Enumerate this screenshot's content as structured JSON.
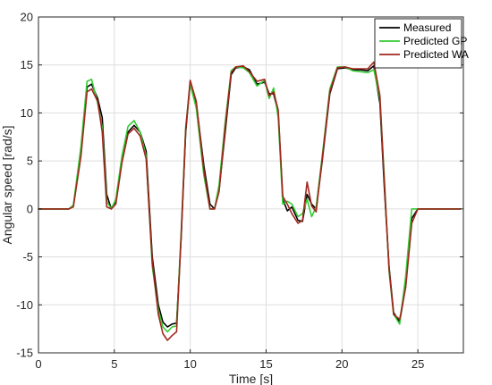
{
  "chart_data": {
    "type": "line",
    "title": "",
    "xlabel": "Time [s]",
    "ylabel": "Angular speed [rad/s]",
    "xlim": [
      0,
      28
    ],
    "ylim": [
      -15,
      20
    ],
    "xticks": [
      0,
      5,
      10,
      15,
      20,
      25
    ],
    "yticks": [
      -15,
      -10,
      -5,
      0,
      5,
      10,
      15,
      20
    ],
    "grid": true,
    "legend_position": "top-right",
    "series": [
      {
        "name": "Measured",
        "color": "#000000",
        "points": [
          [
            0,
            0
          ],
          [
            2,
            0
          ],
          [
            2.3,
            0.3
          ],
          [
            2.8,
            6
          ],
          [
            3.2,
            12.7
          ],
          [
            3.5,
            13
          ],
          [
            3.9,
            11.5
          ],
          [
            4.2,
            9.5
          ],
          [
            4.5,
            1.5
          ],
          [
            4.8,
            0
          ],
          [
            5.1,
            0.8
          ],
          [
            5.5,
            5
          ],
          [
            5.9,
            8
          ],
          [
            6.3,
            8.7
          ],
          [
            6.7,
            8
          ],
          [
            7.1,
            6
          ],
          [
            7.5,
            -5
          ],
          [
            7.9,
            -10
          ],
          [
            8.2,
            -11.8
          ],
          [
            8.5,
            -12.3
          ],
          [
            8.8,
            -12
          ],
          [
            9.1,
            -11.9
          ],
          [
            9.4,
            -3
          ],
          [
            9.7,
            8
          ],
          [
            10,
            13.2
          ],
          [
            10.4,
            11
          ],
          [
            10.9,
            4.5
          ],
          [
            11.3,
            0.5
          ],
          [
            11.6,
            0
          ],
          [
            11.9,
            2
          ],
          [
            12.3,
            8
          ],
          [
            12.7,
            14
          ],
          [
            13,
            14.7
          ],
          [
            13.5,
            14.8
          ],
          [
            13.9,
            14.5
          ],
          [
            14.4,
            13
          ],
          [
            14.9,
            13.2
          ],
          [
            15.2,
            12
          ],
          [
            15.5,
            12
          ],
          [
            15.8,
            10
          ],
          [
            16.1,
            1
          ],
          [
            16.4,
            -0.2
          ],
          [
            16.7,
            0.2
          ],
          [
            17.1,
            -1.2
          ],
          [
            17.4,
            -1.3
          ],
          [
            17.7,
            1.5
          ],
          [
            18,
            0.5
          ],
          [
            18.3,
            0
          ],
          [
            18.7,
            5
          ],
          [
            19.2,
            12
          ],
          [
            19.7,
            14.6
          ],
          [
            20.2,
            14.7
          ],
          [
            20.7,
            14.5
          ],
          [
            21.2,
            14.5
          ],
          [
            21.7,
            14.4
          ],
          [
            22.1,
            14.9
          ],
          [
            22.5,
            11
          ],
          [
            22.8,
            2
          ],
          [
            23.1,
            -6
          ],
          [
            23.4,
            -10.8
          ],
          [
            23.8,
            -11.8
          ],
          [
            24.2,
            -8
          ],
          [
            24.6,
            -1
          ],
          [
            25,
            0
          ],
          [
            27.8,
            0
          ]
        ]
      },
      {
        "name": "Predicted GP",
        "color": "#33cc33",
        "points": [
          [
            0,
            0
          ],
          [
            2,
            0
          ],
          [
            2.3,
            0.4
          ],
          [
            2.8,
            6.5
          ],
          [
            3.2,
            13.3
          ],
          [
            3.5,
            13.5
          ],
          [
            3.9,
            11
          ],
          [
            4.2,
            8.5
          ],
          [
            4.5,
            0.8
          ],
          [
            4.8,
            0
          ],
          [
            5.1,
            1
          ],
          [
            5.5,
            5.5
          ],
          [
            5.9,
            8.6
          ],
          [
            6.3,
            9.2
          ],
          [
            6.7,
            8
          ],
          [
            7.1,
            5.5
          ],
          [
            7.5,
            -6
          ],
          [
            7.9,
            -10.5
          ],
          [
            8.2,
            -12.3
          ],
          [
            8.5,
            -12.8
          ],
          [
            8.8,
            -12.3
          ],
          [
            9.1,
            -12.2
          ],
          [
            9.4,
            -2.5
          ],
          [
            9.7,
            8.5
          ],
          [
            10,
            13
          ],
          [
            10.4,
            10.5
          ],
          [
            10.9,
            3.5
          ],
          [
            11.3,
            0
          ],
          [
            11.6,
            0
          ],
          [
            11.9,
            2.5
          ],
          [
            12.3,
            9
          ],
          [
            12.7,
            14.4
          ],
          [
            13,
            14.8
          ],
          [
            13.5,
            14.7
          ],
          [
            13.9,
            14.2
          ],
          [
            14.4,
            12.8
          ],
          [
            14.9,
            13.4
          ],
          [
            15.2,
            11.5
          ],
          [
            15.5,
            12.6
          ],
          [
            15.8,
            9.5
          ],
          [
            16.1,
            0.5
          ],
          [
            16.4,
            0.8
          ],
          [
            16.7,
            0.5
          ],
          [
            17.1,
            -0.8
          ],
          [
            17.4,
            -0.5
          ],
          [
            17.7,
            1
          ],
          [
            18,
            -0.8
          ],
          [
            18.3,
            0.2
          ],
          [
            18.7,
            5.5
          ],
          [
            19.2,
            12.5
          ],
          [
            19.7,
            14.8
          ],
          [
            20.2,
            14.8
          ],
          [
            20.7,
            14.4
          ],
          [
            21.2,
            14.3
          ],
          [
            21.7,
            14.2
          ],
          [
            22.1,
            14.5
          ],
          [
            22.5,
            11.5
          ],
          [
            22.8,
            3
          ],
          [
            23.1,
            -6.5
          ],
          [
            23.4,
            -11
          ],
          [
            23.8,
            -12
          ],
          [
            24.2,
            -7
          ],
          [
            24.6,
            0
          ],
          [
            25,
            0
          ],
          [
            27.8,
            0
          ]
        ]
      },
      {
        "name": "Predicted WA",
        "color": "#a0281e",
        "points": [
          [
            0,
            0
          ],
          [
            2,
            0
          ],
          [
            2.3,
            0.2
          ],
          [
            2.8,
            5.5
          ],
          [
            3.2,
            12.2
          ],
          [
            3.5,
            12.5
          ],
          [
            3.9,
            11.2
          ],
          [
            4.2,
            8
          ],
          [
            4.5,
            0.2
          ],
          [
            4.8,
            0
          ],
          [
            5.1,
            0.5
          ],
          [
            5.5,
            4.8
          ],
          [
            5.9,
            7.8
          ],
          [
            6.3,
            8.4
          ],
          [
            6.7,
            7.6
          ],
          [
            7.1,
            5.2
          ],
          [
            7.5,
            -5.5
          ],
          [
            7.9,
            -11
          ],
          [
            8.2,
            -13
          ],
          [
            8.5,
            -13.7
          ],
          [
            8.8,
            -13.2
          ],
          [
            9.1,
            -12.8
          ],
          [
            9.4,
            -2.8
          ],
          [
            9.7,
            8.3
          ],
          [
            10,
            13.4
          ],
          [
            10.4,
            11.2
          ],
          [
            10.9,
            4
          ],
          [
            11.3,
            0
          ],
          [
            11.6,
            0
          ],
          [
            11.9,
            1.8
          ],
          [
            12.3,
            8.5
          ],
          [
            12.7,
            14.2
          ],
          [
            13,
            14.8
          ],
          [
            13.5,
            14.9
          ],
          [
            13.9,
            14.3
          ],
          [
            14.4,
            13.3
          ],
          [
            14.9,
            13.5
          ],
          [
            15.2,
            11.8
          ],
          [
            15.5,
            12.2
          ],
          [
            15.8,
            10.3
          ],
          [
            16.1,
            1.3
          ],
          [
            16.4,
            0.5
          ],
          [
            16.7,
            -0.5
          ],
          [
            17.1,
            -1.5
          ],
          [
            17.4,
            -1.2
          ],
          [
            17.7,
            2.8
          ],
          [
            18,
            0.3
          ],
          [
            18.3,
            -0.3
          ],
          [
            18.7,
            5.2
          ],
          [
            19.2,
            12.2
          ],
          [
            19.7,
            14.7
          ],
          [
            20.2,
            14.8
          ],
          [
            20.7,
            14.6
          ],
          [
            21.2,
            14.6
          ],
          [
            21.7,
            14.6
          ],
          [
            22.1,
            15.3
          ],
          [
            22.5,
            11.8
          ],
          [
            22.8,
            2.5
          ],
          [
            23.1,
            -6.2
          ],
          [
            23.4,
            -11
          ],
          [
            23.8,
            -11.5
          ],
          [
            24.2,
            -8.2
          ],
          [
            24.6,
            -1.5
          ],
          [
            25,
            0
          ],
          [
            27.8,
            0
          ]
        ]
      }
    ]
  }
}
